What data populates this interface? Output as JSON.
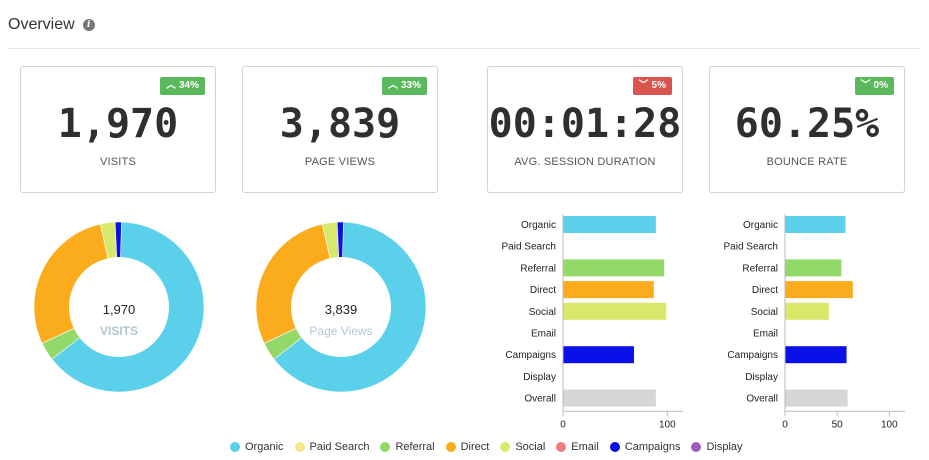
{
  "header": {
    "title": "Overview",
    "info_icon": "info-icon"
  },
  "kpis": [
    {
      "value": "1,970",
      "label": "VISITS",
      "change": "34%",
      "direction": "up"
    },
    {
      "value": "3,839",
      "label": "PAGE VIEWS",
      "change": "33%",
      "direction": "up"
    },
    {
      "value": "00:01:28",
      "label": "AVG. SESSION DURATION",
      "change": "5%",
      "direction": "down"
    },
    {
      "value": "60.25%",
      "label": "BOUNCE RATE",
      "change": "0%",
      "direction": "down"
    }
  ],
  "colors": {
    "Organic": "#5bd0ea",
    "Paid Search": "#f4e98a",
    "Referral": "#93d96a",
    "Direct": "#fbac1c",
    "Social": "#d8e86a",
    "Email": "#f07b83",
    "Campaigns": "#0a11e8",
    "Display": "#a05ac0",
    "Overall": "#d6d6d6"
  },
  "chart_data": [
    {
      "type": "pie",
      "donut": true,
      "center_value": "1,970",
      "center_label": "VISITS",
      "categories": [
        "Organic",
        "Paid Search",
        "Referral",
        "Direct",
        "Social",
        "Email",
        "Campaigns",
        "Display"
      ],
      "values": [
        64,
        0,
        3.5,
        28.5,
        2.8,
        0,
        1.2,
        0
      ]
    },
    {
      "type": "pie",
      "donut": true,
      "center_value": "3,839",
      "center_label": "Page Views",
      "categories": [
        "Organic",
        "Paid Search",
        "Referral",
        "Direct",
        "Social",
        "Email",
        "Campaigns",
        "Display"
      ],
      "values": [
        64,
        0,
        3.5,
        28.5,
        2.8,
        0,
        1.2,
        0
      ]
    },
    {
      "type": "bar",
      "orientation": "horizontal",
      "categories": [
        "Organic",
        "Paid Search",
        "Referral",
        "Direct",
        "Social",
        "Email",
        "Campaigns",
        "Display",
        "Overall"
      ],
      "values": [
        89,
        0,
        97,
        87,
        99,
        0,
        68,
        0,
        89
      ],
      "xlim": [
        0,
        115
      ],
      "xticks": [
        "0",
        "100"
      ],
      "xtick_values": [
        0,
        100
      ]
    },
    {
      "type": "bar",
      "orientation": "horizontal",
      "categories": [
        "Organic",
        "Paid Search",
        "Referral",
        "Direct",
        "Social",
        "Email",
        "Campaigns",
        "Display",
        "Overall"
      ],
      "values": [
        58,
        0,
        54,
        65,
        42,
        0,
        59,
        0,
        60
      ],
      "xlim": [
        0,
        115
      ],
      "xticks": [
        "0",
        "50",
        "100"
      ],
      "xtick_values": [
        0,
        50,
        100
      ]
    }
  ],
  "legend": [
    "Organic",
    "Paid Search",
    "Referral",
    "Direct",
    "Social",
    "Email",
    "Campaigns",
    "Display"
  ]
}
